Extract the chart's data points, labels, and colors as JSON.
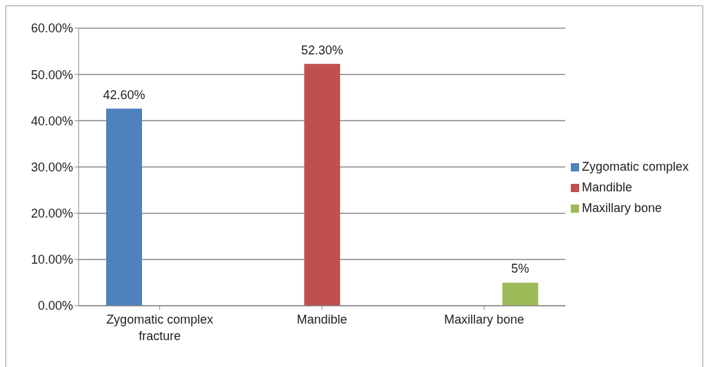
{
  "chart_data": {
    "type": "bar",
    "categories": [
      "Zygomatic complex fracture",
      "Mandible",
      "Maxillary bone"
    ],
    "series": [
      {
        "name": "Zygomatic complex",
        "color": "#4f81bd",
        "values": [
          42.6,
          null,
          null
        ],
        "value_labels": [
          "42.60%",
          null,
          null
        ]
      },
      {
        "name": "Mandible",
        "color": "#c0504d",
        "values": [
          null,
          52.3,
          null
        ],
        "value_labels": [
          null,
          "52.30%",
          null
        ]
      },
      {
        "name": "Maxillary bone",
        "color": "#9bbb59",
        "values": [
          null,
          null,
          5
        ],
        "value_labels": [
          null,
          null,
          "5%"
        ]
      }
    ],
    "ylim": [
      0,
      60
    ],
    "yticks": [
      {
        "value": 0,
        "label": "0.00%"
      },
      {
        "value": 10,
        "label": "10.00%"
      },
      {
        "value": 20,
        "label": "20.00%"
      },
      {
        "value": 30,
        "label": "30.00%"
      },
      {
        "value": 40,
        "label": "40.00%"
      },
      {
        "value": 50,
        "label": "50.00%"
      },
      {
        "value": 60,
        "label": "60.00%"
      }
    ],
    "grid": "y",
    "legend": "right"
  }
}
